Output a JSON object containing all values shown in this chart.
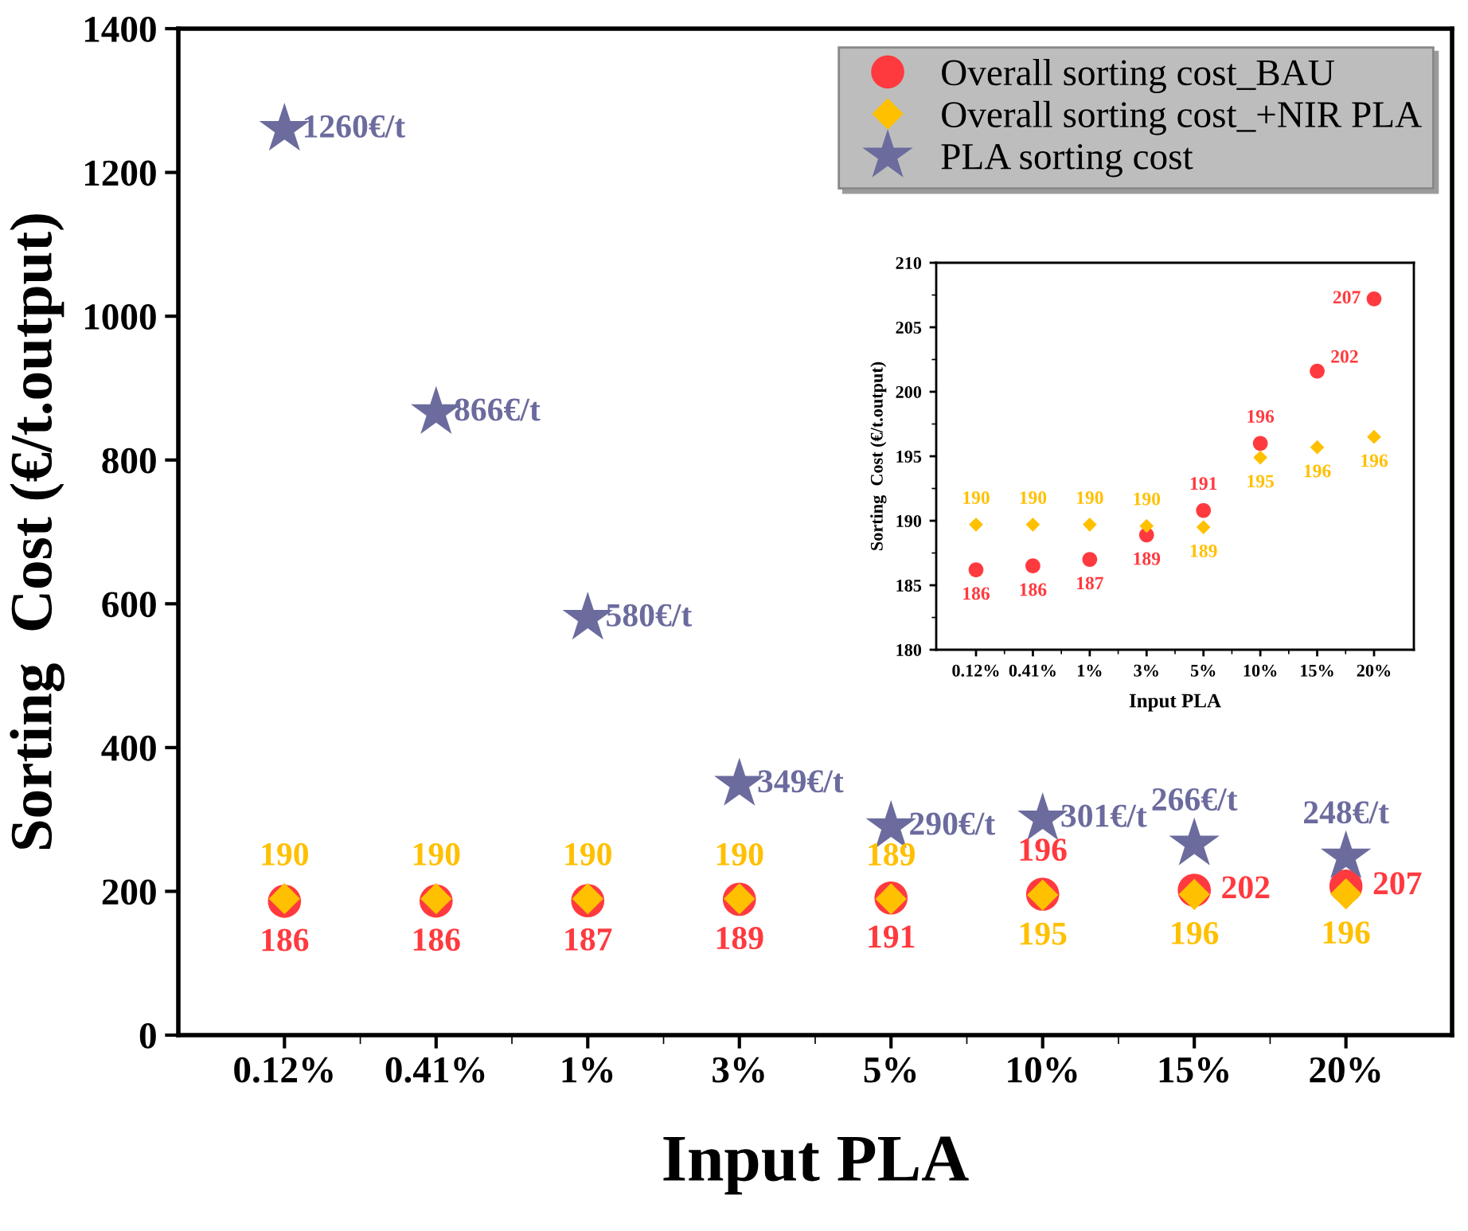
{
  "chart_data": [
    {
      "type": "scatter",
      "xlabel": "Input PLA",
      "ylabel": "Sorting  Cost (€/t.output)",
      "categories": [
        "0.12%",
        "0.41%",
        "1%",
        "3%",
        "5%",
        "10%",
        "15%",
        "20%"
      ],
      "ylim": [
        0,
        1400
      ],
      "yticks": [
        0,
        200,
        400,
        600,
        800,
        1000,
        1200,
        1400
      ],
      "legend": "top right",
      "grid": false,
      "series": [
        {
          "name": "Overall sorting cost_BAU",
          "color": "#ff3a3f",
          "marker": "circle",
          "values": [
            186.2,
            186.5,
            187.0,
            188.9,
            190.8,
            196.0,
            201.6,
            207.2
          ],
          "value_labels": [
            "186",
            "186",
            "187",
            "189",
            "191",
            "196",
            "202",
            "207"
          ]
        },
        {
          "name": "Overall sorting cost_+NIR PLA",
          "color": "#ffc000",
          "marker": "diamond",
          "values": [
            189.7,
            189.7,
            189.7,
            189.6,
            189.5,
            194.9,
            195.7,
            196.5
          ],
          "value_labels": [
            "190",
            "190",
            "190",
            "190",
            "189",
            "195",
            "196",
            "196"
          ]
        },
        {
          "name": "PLA sorting cost",
          "color": "#6b6b9e",
          "marker": "star",
          "values": [
            1260,
            866,
            580,
            349,
            290,
            301,
            266,
            248
          ],
          "value_labels": [
            "1260€/t",
            "866€/t",
            "580€/t",
            "349€/t",
            "290€/t",
            "301€/t",
            "266€/t",
            "248€/t"
          ]
        }
      ]
    },
    {
      "type": "scatter",
      "xlabel": "Input PLA",
      "ylabel": "Sorting  Cost (€/t.output)",
      "categories": [
        "0.12%",
        "0.41%",
        "1%",
        "3%",
        "5%",
        "10%",
        "15%",
        "20%"
      ],
      "ylim": [
        180,
        210
      ],
      "yticks": [
        180,
        185,
        190,
        195,
        200,
        205,
        210
      ],
      "grid": false,
      "series": [
        {
          "color": "#ff3a3f",
          "marker": "circle",
          "values": [
            186.2,
            186.5,
            187.0,
            188.9,
            190.8,
            196.0,
            201.6,
            207.2
          ],
          "value_labels": [
            "186",
            "186",
            "187",
            "189",
            "191",
            "196",
            "202",
            "207"
          ]
        },
        {
          "color": "#ffc000",
          "marker": "diamond",
          "values": [
            189.7,
            189.7,
            189.7,
            189.6,
            189.5,
            194.9,
            195.7,
            196.5
          ],
          "value_labels": [
            "190",
            "190",
            "190",
            "190",
            "189",
            "195",
            "196",
            "196"
          ]
        }
      ]
    }
  ]
}
